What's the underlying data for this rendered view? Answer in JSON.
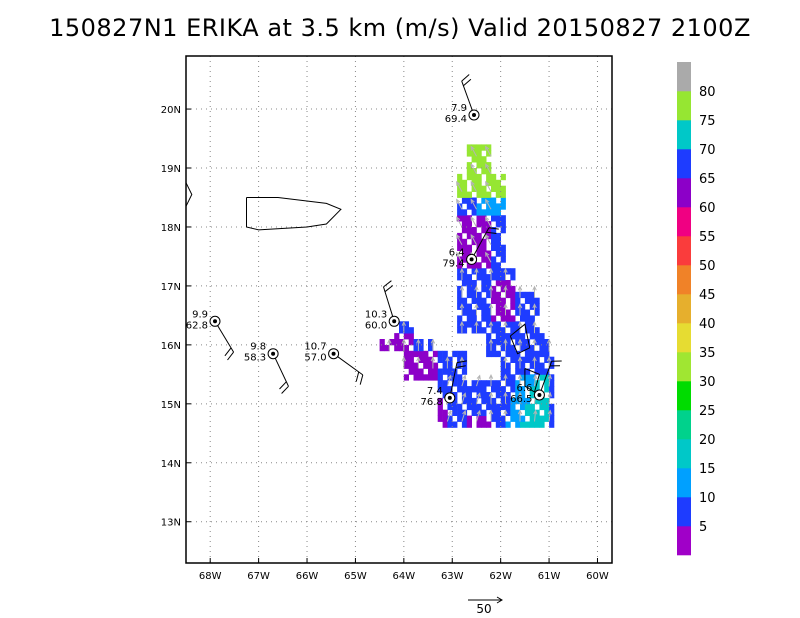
{
  "title": "150827N1 ERIKA at 3.5 km (m/s) Valid 20150827 2100Z",
  "map": {
    "lon_range": [
      -68.5,
      -59.7
    ],
    "lat_range": [
      12.3,
      20.9
    ],
    "lon_ticks": [
      {
        "lon": -68,
        "label": "68W"
      },
      {
        "lon": -67,
        "label": "67W"
      },
      {
        "lon": -66,
        "label": "66W"
      },
      {
        "lon": -65,
        "label": "65W"
      },
      {
        "lon": -64,
        "label": "64W"
      },
      {
        "lon": -63,
        "label": "63W"
      },
      {
        "lon": -62,
        "label": "62W"
      },
      {
        "lon": -61,
        "label": "61W"
      },
      {
        "lon": -60,
        "label": "60W"
      }
    ],
    "lat_ticks": [
      {
        "lat": 13,
        "label": "13N"
      },
      {
        "lat": 14,
        "label": "14N"
      },
      {
        "lat": 15,
        "label": "15N"
      },
      {
        "lat": 16,
        "label": "16N"
      },
      {
        "lat": 17,
        "label": "17N"
      },
      {
        "lat": 18,
        "label": "18N"
      },
      {
        "lat": 19,
        "label": "19N"
      },
      {
        "lat": 20,
        "label": "20N"
      }
    ],
    "grid": true
  },
  "colorbar": {
    "levels": [
      "5",
      "10",
      "15",
      "20",
      "25",
      "30",
      "35",
      "40",
      "45",
      "50",
      "55",
      "60",
      "65",
      "70",
      "75",
      "80"
    ],
    "colors": [
      "#a000c8",
      "#1e3cff",
      "#00a0ff",
      "#00c8c8",
      "#00d28c",
      "#00dc00",
      "#a0e632",
      "#e6dc32",
      "#e6af2d",
      "#f08228",
      "#fa3c3c",
      "#f00082",
      "#8c00c8",
      "#1e3cff",
      "#00c8c8",
      "#96e632",
      "#aaaaaa"
    ]
  },
  "stations": [
    {
      "lon": -62.55,
      "lat": 19.9,
      "top": "7.9",
      "bottom": "69.4"
    },
    {
      "lon": -62.6,
      "lat": 17.45,
      "top": "6.4",
      "bottom": "79.4"
    },
    {
      "lon": -67.9,
      "lat": 16.4,
      "top": "9.9",
      "bottom": "62.8"
    },
    {
      "lon": -66.7,
      "lat": 15.85,
      "top": "9.8",
      "bottom": "58.3"
    },
    {
      "lon": -65.45,
      "lat": 15.85,
      "top": "10.7",
      "bottom": "57.0"
    },
    {
      "lon": -64.2,
      "lat": 16.4,
      "top": "10.3",
      "bottom": "60.0"
    },
    {
      "lon": -63.05,
      "lat": 15.1,
      "top": "7.4",
      "bottom": "76.8"
    },
    {
      "lon": -61.2,
      "lat": 15.15,
      "top": "6.6",
      "bottom": "66.5"
    }
  ],
  "reference_vector": {
    "label": "50"
  }
}
